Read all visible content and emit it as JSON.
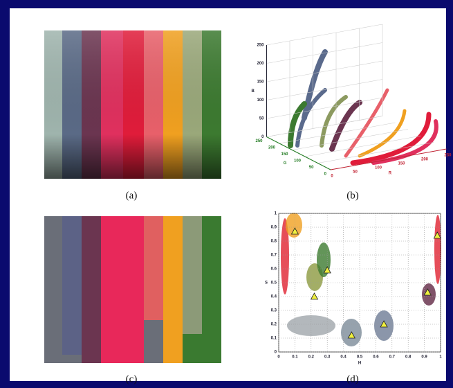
{
  "captions": [
    "(a)",
    "(b)",
    "(c)",
    "(d)"
  ],
  "plot_b": {
    "zlabel": "B",
    "xlabel": "R",
    "ylabel": "G",
    "xticks": [
      0,
      50,
      100,
      150,
      200,
      250
    ],
    "yticks": [
      0,
      50,
      100,
      150,
      200,
      250
    ],
    "zticks": [
      0,
      50,
      100,
      150,
      200,
      250
    ]
  },
  "plot_d": {
    "xlabel": "H",
    "ylabel": "S",
    "xlim": [
      0,
      1
    ],
    "ylim": [
      0,
      1
    ],
    "grid": true,
    "xticks": [
      0,
      0.1,
      0.2,
      0.3,
      0.4,
      0.5,
      0.6,
      0.7,
      0.8,
      0.9,
      1
    ],
    "yticks": [
      0,
      0.1,
      0.2,
      0.3,
      0.4,
      0.5,
      0.6,
      0.7,
      0.8,
      0.9,
      1
    ],
    "centers": {
      "x": [
        0.1,
        0.22,
        0.3,
        0.45,
        0.65,
        0.92,
        0.98
      ],
      "y": [
        0.87,
        0.4,
        0.59,
        0.12,
        0.2,
        0.43,
        0.84
      ]
    }
  }
}
